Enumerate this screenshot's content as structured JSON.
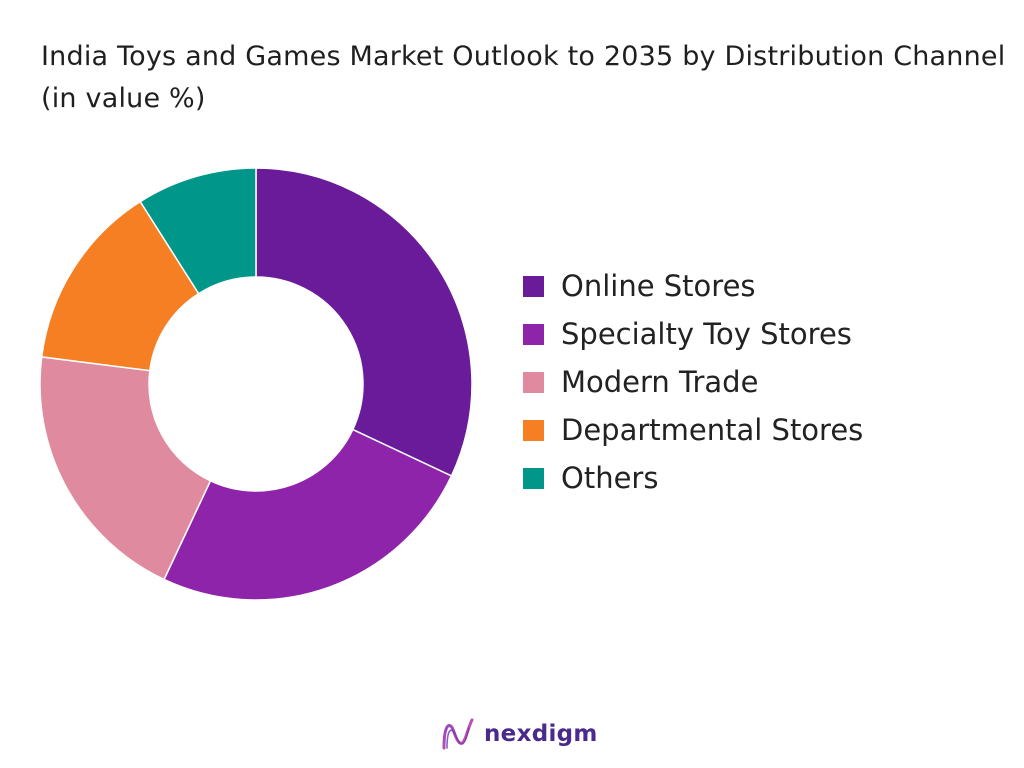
{
  "chart_data": {
    "type": "pie",
    "title": "India Toys and Games Market Outlook to 2035 by Distribution Channel (in value %)",
    "donut": true,
    "categories": [
      "Online Stores",
      "Specialty Toy Stores",
      "Modern Trade",
      "Departmental Stores",
      "Others"
    ],
    "values": [
      32,
      25,
      20,
      14,
      9
    ],
    "unit": "%",
    "colors": [
      "#6a1b9a",
      "#8e24aa",
      "#e08aa0",
      "#f57f22",
      "#00968a"
    ],
    "legend_position": "right"
  },
  "brand": {
    "name": "nexdigm",
    "logo_icon": "nexdigm-wave-logo-icon",
    "color": "#4a2a8a"
  }
}
